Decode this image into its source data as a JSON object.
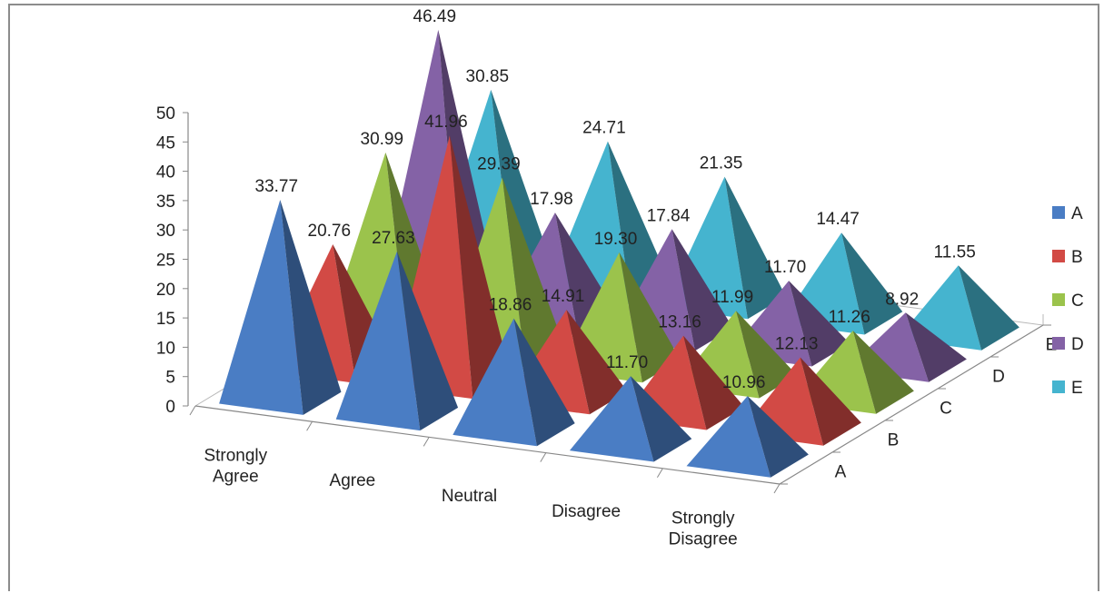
{
  "chart_data": {
    "type": "bar",
    "subtype": "3d-pyramid",
    "title": "",
    "xlabel": "",
    "ylabel": "",
    "ylim": [
      0,
      50
    ],
    "yticks": [
      0,
      5,
      10,
      15,
      20,
      25,
      30,
      35,
      40,
      45,
      50
    ],
    "categories": [
      "Strongly Agree",
      "Agree",
      "Neutral",
      "Disagree",
      "Strongly Disagree"
    ],
    "series": [
      {
        "name": "A",
        "color": "#4a7dc4",
        "values": [
          33.77,
          27.63,
          18.86,
          11.7,
          10.96
        ]
      },
      {
        "name": "B",
        "color": "#d24a45",
        "values": [
          20.76,
          41.96,
          14.91,
          13.16,
          12.13
        ]
      },
      {
        "name": "C",
        "color": "#9bc34c",
        "values": [
          30.99,
          29.39,
          19.3,
          11.99,
          11.26
        ]
      },
      {
        "name": "D",
        "color": "#8462a6",
        "values": [
          46.49,
          17.98,
          17.84,
          11.7,
          8.92
        ]
      },
      {
        "name": "E",
        "color": "#45b4cf",
        "values": [
          30.85,
          24.71,
          21.35,
          14.47,
          11.55
        ]
      }
    ],
    "data_labels": true,
    "legend": "right",
    "grid": false
  }
}
